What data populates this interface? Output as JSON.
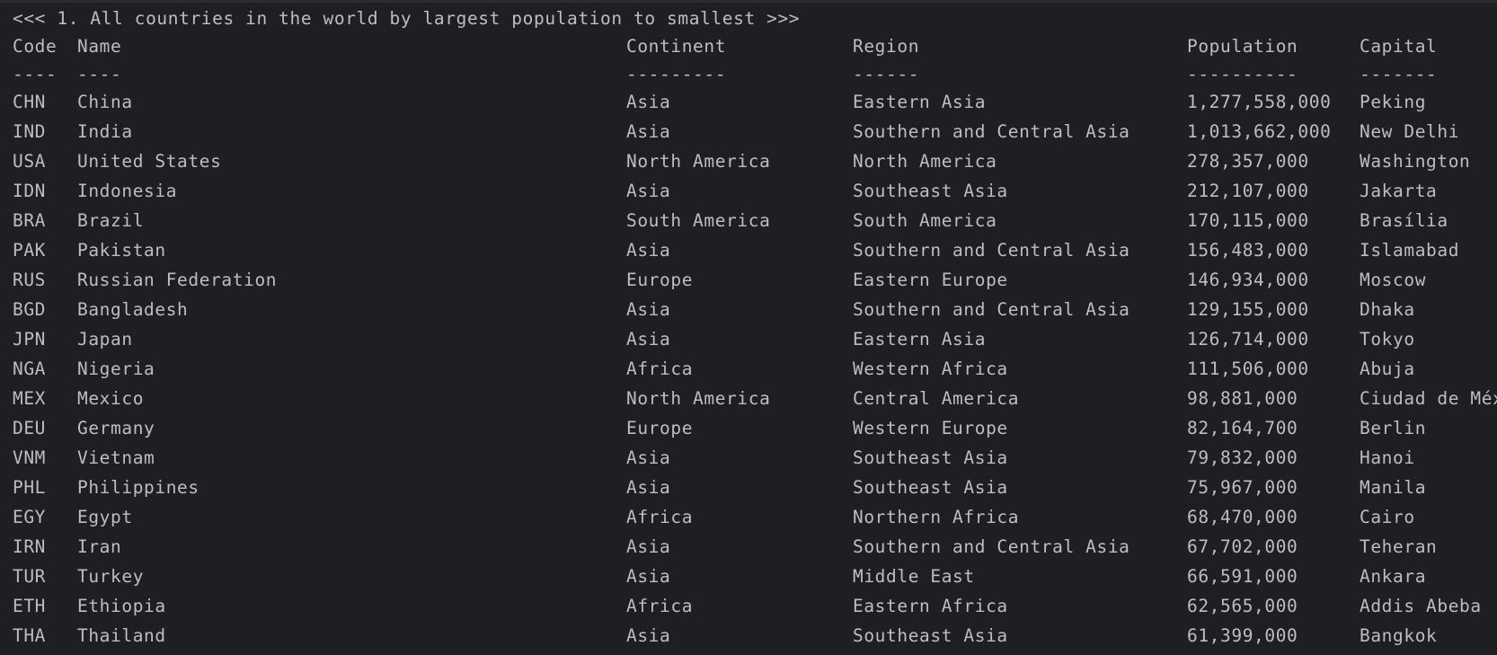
{
  "report": {
    "title": "<<< 1. All countries in the world by largest population to smallest >>>",
    "headers": {
      "code": "Code",
      "name": "Name",
      "continent": "Continent",
      "region": "Region",
      "population": "Population",
      "capital": "Capital"
    },
    "separators": {
      "code": "----",
      "name": "----",
      "continent": "---------",
      "region": "------",
      "population": "----------",
      "capital": "-------"
    },
    "rows": [
      {
        "code": "CHN",
        "name": "China",
        "continent": "Asia",
        "region": "Eastern Asia",
        "population": "1,277,558,000",
        "capital": "Peking"
      },
      {
        "code": "IND",
        "name": "India",
        "continent": "Asia",
        "region": "Southern and Central Asia",
        "population": "1,013,662,000",
        "capital": "New Delhi"
      },
      {
        "code": "USA",
        "name": "United States",
        "continent": "North America",
        "region": "North America",
        "population": "278,357,000",
        "capital": "Washington"
      },
      {
        "code": "IDN",
        "name": "Indonesia",
        "continent": "Asia",
        "region": "Southeast Asia",
        "population": "212,107,000",
        "capital": "Jakarta"
      },
      {
        "code": "BRA",
        "name": "Brazil",
        "continent": "South America",
        "region": "South America",
        "population": "170,115,000",
        "capital": "Brasília"
      },
      {
        "code": "PAK",
        "name": "Pakistan",
        "continent": "Asia",
        "region": "Southern and Central Asia",
        "population": "156,483,000",
        "capital": "Islamabad"
      },
      {
        "code": "RUS",
        "name": "Russian Federation",
        "continent": "Europe",
        "region": "Eastern Europe",
        "population": "146,934,000",
        "capital": "Moscow"
      },
      {
        "code": "BGD",
        "name": "Bangladesh",
        "continent": "Asia",
        "region": "Southern and Central Asia",
        "population": "129,155,000",
        "capital": "Dhaka"
      },
      {
        "code": "JPN",
        "name": "Japan",
        "continent": "Asia",
        "region": "Eastern Asia",
        "population": "126,714,000",
        "capital": "Tokyo"
      },
      {
        "code": "NGA",
        "name": "Nigeria",
        "continent": "Africa",
        "region": "Western Africa",
        "population": "111,506,000",
        "capital": "Abuja"
      },
      {
        "code": "MEX",
        "name": "Mexico",
        "continent": "North America",
        "region": "Central America",
        "population": "98,881,000",
        "capital": "Ciudad de Méx"
      },
      {
        "code": "DEU",
        "name": "Germany",
        "continent": "Europe",
        "region": "Western Europe",
        "population": "82,164,700",
        "capital": "Berlin"
      },
      {
        "code": "VNM",
        "name": "Vietnam",
        "continent": "Asia",
        "region": "Southeast Asia",
        "population": "79,832,000",
        "capital": "Hanoi"
      },
      {
        "code": "PHL",
        "name": "Philippines",
        "continent": "Asia",
        "region": "Southeast Asia",
        "population": "75,967,000",
        "capital": "Manila"
      },
      {
        "code": "EGY",
        "name": "Egypt",
        "continent": "Africa",
        "region": "Northern Africa",
        "population": "68,470,000",
        "capital": "Cairo"
      },
      {
        "code": "IRN",
        "name": "Iran",
        "continent": "Asia",
        "region": "Southern and Central Asia",
        "population": "67,702,000",
        "capital": "Teheran"
      },
      {
        "code": "TUR",
        "name": "Turkey",
        "continent": "Asia",
        "region": "Middle East",
        "population": "66,591,000",
        "capital": "Ankara"
      },
      {
        "code": "ETH",
        "name": "Ethiopia",
        "continent": "Africa",
        "region": "Eastern Africa",
        "population": "62,565,000",
        "capital": "Addis Abeba"
      },
      {
        "code": "THA",
        "name": "Thailand",
        "continent": "Asia",
        "region": "Southeast Asia",
        "population": "61,399,000",
        "capital": "Bangkok"
      }
    ]
  },
  "colors": {
    "background": "#1e1f22",
    "text": "#bcbec4"
  }
}
